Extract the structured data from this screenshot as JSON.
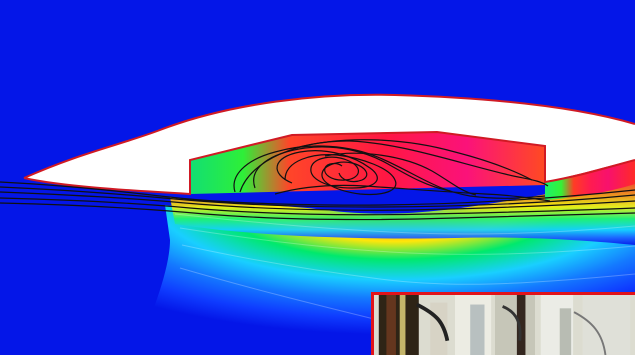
{
  "scene": {
    "type": "simulation-contour-with-streamlines",
    "background_color": "#0416e8",
    "outline_color": "#d01a24",
    "streamline_color": "#111111"
  },
  "inset_photo": {
    "border_color": "#e1131b",
    "description_visible": false
  }
}
